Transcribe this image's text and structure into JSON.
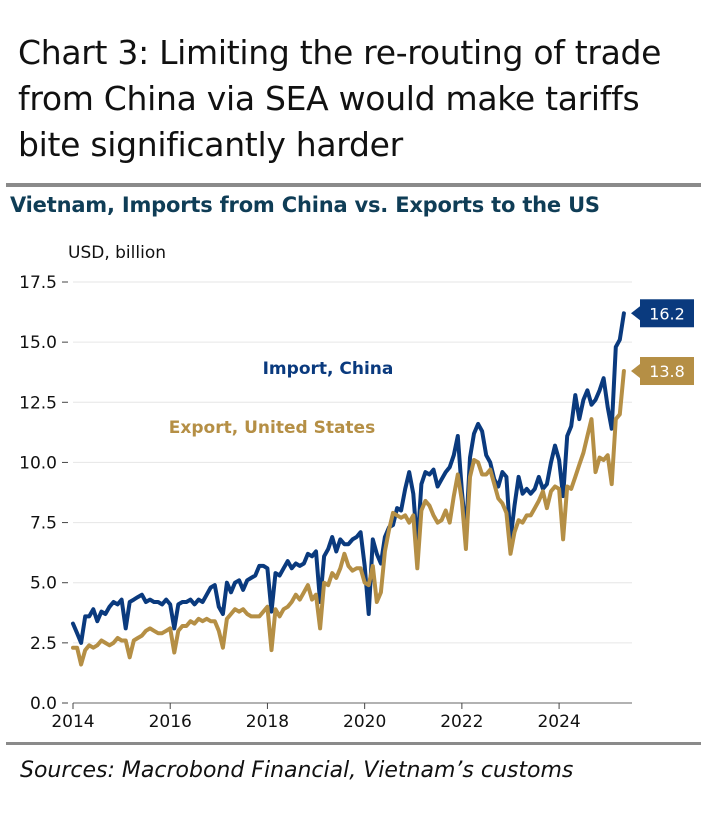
{
  "headline": "Chart 3: Limiting the re-routing of trade from China via SEA would make tariffs bite significantly harder",
  "source": "Sources: Macrobond Financial, Vietnam’s customs",
  "colors": {
    "import": "#0a3a7e",
    "export": "#b58f45",
    "grid": "#e6e6e6",
    "rule": "#8a8a8a"
  },
  "chart_data": {
    "type": "line",
    "title": "Vietnam, Imports from China vs. Exports to the US",
    "ylabel": "USD, billion",
    "xlabel": "",
    "ylim": [
      0,
      17.5
    ],
    "yticks": [
      "0.0",
      "2.5",
      "5.0",
      "7.5",
      "10.0",
      "12.5",
      "15.0",
      "17.5"
    ],
    "xticks": [
      "2014",
      "2016",
      "2018",
      "2020",
      "2022",
      "2024"
    ],
    "grid": "horizontal",
    "series": [
      {
        "name": "Import, China",
        "color": "#0a3a7e",
        "last_value_label": "16.2",
        "points": [
          [
            "2014-01",
            3.3
          ],
          [
            "2014-02",
            2.9
          ],
          [
            "2014-03",
            2.5
          ],
          [
            "2014-04",
            3.6
          ],
          [
            "2014-05",
            3.6
          ],
          [
            "2014-06",
            3.9
          ],
          [
            "2014-07",
            3.4
          ],
          [
            "2014-08",
            3.8
          ],
          [
            "2014-09",
            3.7
          ],
          [
            "2014-10",
            4.0
          ],
          [
            "2014-11",
            4.2
          ],
          [
            "2014-12",
            4.1
          ],
          [
            "2015-01",
            4.3
          ],
          [
            "2015-02",
            3.1
          ],
          [
            "2015-03",
            4.2
          ],
          [
            "2015-04",
            4.3
          ],
          [
            "2015-05",
            4.4
          ],
          [
            "2015-06",
            4.5
          ],
          [
            "2015-07",
            4.2
          ],
          [
            "2015-08",
            4.3
          ],
          [
            "2015-09",
            4.2
          ],
          [
            "2015-10",
            4.2
          ],
          [
            "2015-11",
            4.1
          ],
          [
            "2015-12",
            4.3
          ],
          [
            "2016-01",
            4.1
          ],
          [
            "2016-02",
            3.1
          ],
          [
            "2016-03",
            4.1
          ],
          [
            "2016-04",
            4.2
          ],
          [
            "2016-05",
            4.2
          ],
          [
            "2016-06",
            4.3
          ],
          [
            "2016-07",
            4.1
          ],
          [
            "2016-08",
            4.3
          ],
          [
            "2016-09",
            4.2
          ],
          [
            "2016-10",
            4.5
          ],
          [
            "2016-11",
            4.8
          ],
          [
            "2016-12",
            4.9
          ],
          [
            "2017-01",
            4.0
          ],
          [
            "2017-02",
            3.7
          ],
          [
            "2017-03",
            5.0
          ],
          [
            "2017-04",
            4.6
          ],
          [
            "2017-05",
            5.0
          ],
          [
            "2017-06",
            5.1
          ],
          [
            "2017-07",
            4.7
          ],
          [
            "2017-08",
            5.1
          ],
          [
            "2017-09",
            5.2
          ],
          [
            "2017-10",
            5.3
          ],
          [
            "2017-11",
            5.7
          ],
          [
            "2017-12",
            5.7
          ],
          [
            "2018-01",
            5.6
          ],
          [
            "2018-02",
            3.8
          ],
          [
            "2018-03",
            5.4
          ],
          [
            "2018-04",
            5.3
          ],
          [
            "2018-05",
            5.6
          ],
          [
            "2018-06",
            5.9
          ],
          [
            "2018-07",
            5.6
          ],
          [
            "2018-08",
            5.8
          ],
          [
            "2018-09",
            5.7
          ],
          [
            "2018-10",
            5.8
          ],
          [
            "2018-11",
            6.2
          ],
          [
            "2018-12",
            6.1
          ],
          [
            "2019-01",
            6.3
          ],
          [
            "2019-02",
            4.2
          ],
          [
            "2019-03",
            6.1
          ],
          [
            "2019-04",
            6.4
          ],
          [
            "2019-05",
            6.9
          ],
          [
            "2019-06",
            6.3
          ],
          [
            "2019-07",
            6.8
          ],
          [
            "2019-08",
            6.6
          ],
          [
            "2019-09",
            6.6
          ],
          [
            "2019-10",
            6.8
          ],
          [
            "2019-11",
            6.9
          ],
          [
            "2019-12",
            7.1
          ],
          [
            "2020-01",
            5.7
          ],
          [
            "2020-02",
            3.7
          ],
          [
            "2020-03",
            6.8
          ],
          [
            "2020-04",
            6.2
          ],
          [
            "2020-05",
            5.8
          ],
          [
            "2020-06",
            6.9
          ],
          [
            "2020-07",
            7.3
          ],
          [
            "2020-08",
            7.4
          ],
          [
            "2020-09",
            8.1
          ],
          [
            "2020-10",
            8.0
          ],
          [
            "2020-11",
            8.9
          ],
          [
            "2020-12",
            9.6
          ],
          [
            "2021-01",
            8.7
          ],
          [
            "2021-02",
            6.5
          ],
          [
            "2021-03",
            9.1
          ],
          [
            "2021-04",
            9.6
          ],
          [
            "2021-05",
            9.5
          ],
          [
            "2021-06",
            9.7
          ],
          [
            "2021-07",
            9.0
          ],
          [
            "2021-08",
            9.3
          ],
          [
            "2021-09",
            9.6
          ],
          [
            "2021-10",
            9.8
          ],
          [
            "2021-11",
            10.3
          ],
          [
            "2021-12",
            11.1
          ],
          [
            "2022-01",
            8.8
          ],
          [
            "2022-02",
            7.0
          ],
          [
            "2022-03",
            10.2
          ],
          [
            "2022-04",
            11.2
          ],
          [
            "2022-05",
            11.6
          ],
          [
            "2022-06",
            11.3
          ],
          [
            "2022-07",
            10.3
          ],
          [
            "2022-08",
            10.0
          ],
          [
            "2022-09",
            9.3
          ],
          [
            "2022-10",
            9.0
          ],
          [
            "2022-11",
            9.6
          ],
          [
            "2022-12",
            9.4
          ],
          [
            "2023-01",
            6.8
          ],
          [
            "2023-02",
            8.2
          ],
          [
            "2023-03",
            9.4
          ],
          [
            "2023-04",
            8.7
          ],
          [
            "2023-05",
            8.9
          ],
          [
            "2023-06",
            8.7
          ],
          [
            "2023-07",
            8.9
          ],
          [
            "2023-08",
            9.4
          ],
          [
            "2023-09",
            8.9
          ],
          [
            "2023-10",
            9.1
          ],
          [
            "2023-11",
            10.0
          ],
          [
            "2023-12",
            10.7
          ],
          [
            "2024-01",
            10.1
          ],
          [
            "2024-02",
            8.6
          ],
          [
            "2024-03",
            11.1
          ],
          [
            "2024-04",
            11.5
          ],
          [
            "2024-05",
            12.8
          ],
          [
            "2024-06",
            11.8
          ],
          [
            "2024-07",
            12.6
          ],
          [
            "2024-08",
            13.0
          ],
          [
            "2024-09",
            12.4
          ],
          [
            "2024-10",
            12.6
          ],
          [
            "2024-11",
            13.0
          ],
          [
            "2024-12",
            13.5
          ],
          [
            "2025-01",
            12.3
          ],
          [
            "2025-02",
            11.4
          ],
          [
            "2025-03",
            14.8
          ],
          [
            "2025-04",
            15.1
          ],
          [
            "2025-05",
            16.2
          ]
        ]
      },
      {
        "name": "Export, United States",
        "color": "#b58f45",
        "last_value_label": "13.8",
        "points": [
          [
            "2014-01",
            2.3
          ],
          [
            "2014-02",
            2.3
          ],
          [
            "2014-03",
            1.6
          ],
          [
            "2014-04",
            2.2
          ],
          [
            "2014-05",
            2.4
          ],
          [
            "2014-06",
            2.3
          ],
          [
            "2014-07",
            2.4
          ],
          [
            "2014-08",
            2.6
          ],
          [
            "2014-09",
            2.5
          ],
          [
            "2014-10",
            2.4
          ],
          [
            "2014-11",
            2.5
          ],
          [
            "2014-12",
            2.7
          ],
          [
            "2015-01",
            2.6
          ],
          [
            "2015-02",
            2.6
          ],
          [
            "2015-03",
            1.9
          ],
          [
            "2015-04",
            2.6
          ],
          [
            "2015-05",
            2.7
          ],
          [
            "2015-06",
            2.8
          ],
          [
            "2015-07",
            3.0
          ],
          [
            "2015-08",
            3.1
          ],
          [
            "2015-09",
            3.0
          ],
          [
            "2015-10",
            2.9
          ],
          [
            "2015-11",
            2.9
          ],
          [
            "2015-12",
            3.0
          ],
          [
            "2016-01",
            3.1
          ],
          [
            "2016-02",
            2.1
          ],
          [
            "2016-03",
            3.0
          ],
          [
            "2016-04",
            3.2
          ],
          [
            "2016-05",
            3.2
          ],
          [
            "2016-06",
            3.4
          ],
          [
            "2016-07",
            3.3
          ],
          [
            "2016-08",
            3.5
          ],
          [
            "2016-09",
            3.4
          ],
          [
            "2016-10",
            3.5
          ],
          [
            "2016-11",
            3.4
          ],
          [
            "2016-12",
            3.4
          ],
          [
            "2017-01",
            3.0
          ],
          [
            "2017-02",
            2.3
          ],
          [
            "2017-03",
            3.5
          ],
          [
            "2017-04",
            3.7
          ],
          [
            "2017-05",
            3.9
          ],
          [
            "2017-06",
            3.8
          ],
          [
            "2017-07",
            3.9
          ],
          [
            "2017-08",
            3.7
          ],
          [
            "2017-09",
            3.6
          ],
          [
            "2017-10",
            3.6
          ],
          [
            "2017-11",
            3.6
          ],
          [
            "2017-12",
            3.8
          ],
          [
            "2018-01",
            4.0
          ],
          [
            "2018-02",
            2.2
          ],
          [
            "2018-03",
            3.9
          ],
          [
            "2018-04",
            3.6
          ],
          [
            "2018-05",
            3.9
          ],
          [
            "2018-06",
            4.0
          ],
          [
            "2018-07",
            4.2
          ],
          [
            "2018-08",
            4.5
          ],
          [
            "2018-09",
            4.3
          ],
          [
            "2018-10",
            4.6
          ],
          [
            "2018-11",
            4.9
          ],
          [
            "2018-12",
            4.3
          ],
          [
            "2019-01",
            4.5
          ],
          [
            "2019-02",
            3.1
          ],
          [
            "2019-03",
            5.0
          ],
          [
            "2019-04",
            4.9
          ],
          [
            "2019-05",
            5.4
          ],
          [
            "2019-06",
            5.2
          ],
          [
            "2019-07",
            5.6
          ],
          [
            "2019-08",
            6.2
          ],
          [
            "2019-09",
            5.7
          ],
          [
            "2019-10",
            5.5
          ],
          [
            "2019-11",
            5.6
          ],
          [
            "2019-12",
            5.6
          ],
          [
            "2020-01",
            5.0
          ],
          [
            "2020-02",
            4.9
          ],
          [
            "2020-03",
            5.7
          ],
          [
            "2020-04",
            4.2
          ],
          [
            "2020-05",
            4.6
          ],
          [
            "2020-06",
            6.3
          ],
          [
            "2020-07",
            7.2
          ],
          [
            "2020-08",
            7.9
          ],
          [
            "2020-09",
            7.8
          ],
          [
            "2020-10",
            7.7
          ],
          [
            "2020-11",
            7.8
          ],
          [
            "2020-12",
            7.5
          ],
          [
            "2021-01",
            7.8
          ],
          [
            "2021-02",
            5.6
          ],
          [
            "2021-03",
            8.0
          ],
          [
            "2021-04",
            8.4
          ],
          [
            "2021-05",
            8.2
          ],
          [
            "2021-06",
            7.8
          ],
          [
            "2021-07",
            7.5
          ],
          [
            "2021-08",
            7.6
          ],
          [
            "2021-09",
            8.0
          ],
          [
            "2021-10",
            7.5
          ],
          [
            "2021-11",
            8.6
          ],
          [
            "2021-12",
            9.5
          ],
          [
            "2022-01",
            8.4
          ],
          [
            "2022-02",
            6.4
          ],
          [
            "2022-03",
            9.4
          ],
          [
            "2022-04",
            10.1
          ],
          [
            "2022-05",
            10.0
          ],
          [
            "2022-06",
            9.5
          ],
          [
            "2022-07",
            9.5
          ],
          [
            "2022-08",
            9.7
          ],
          [
            "2022-09",
            9.1
          ],
          [
            "2022-10",
            8.5
          ],
          [
            "2022-11",
            8.3
          ],
          [
            "2022-12",
            7.9
          ],
          [
            "2023-01",
            6.2
          ],
          [
            "2023-02",
            7.1
          ],
          [
            "2023-03",
            7.6
          ],
          [
            "2023-04",
            7.5
          ],
          [
            "2023-05",
            7.8
          ],
          [
            "2023-06",
            7.8
          ],
          [
            "2023-07",
            8.1
          ],
          [
            "2023-08",
            8.4
          ],
          [
            "2023-09",
            8.8
          ],
          [
            "2023-10",
            8.1
          ],
          [
            "2023-11",
            8.8
          ],
          [
            "2023-12",
            9.0
          ],
          [
            "2024-01",
            8.9
          ],
          [
            "2024-02",
            6.8
          ],
          [
            "2024-03",
            9.0
          ],
          [
            "2024-04",
            8.9
          ],
          [
            "2024-05",
            9.4
          ],
          [
            "2024-06",
            9.9
          ],
          [
            "2024-07",
            10.4
          ],
          [
            "2024-08",
            11.1
          ],
          [
            "2024-09",
            11.8
          ],
          [
            "2024-10",
            9.6
          ],
          [
            "2024-11",
            10.2
          ],
          [
            "2024-12",
            10.1
          ],
          [
            "2025-01",
            10.3
          ],
          [
            "2025-02",
            9.1
          ],
          [
            "2025-03",
            11.8
          ],
          [
            "2025-04",
            12.0
          ],
          [
            "2025-05",
            13.8
          ]
        ]
      }
    ]
  }
}
